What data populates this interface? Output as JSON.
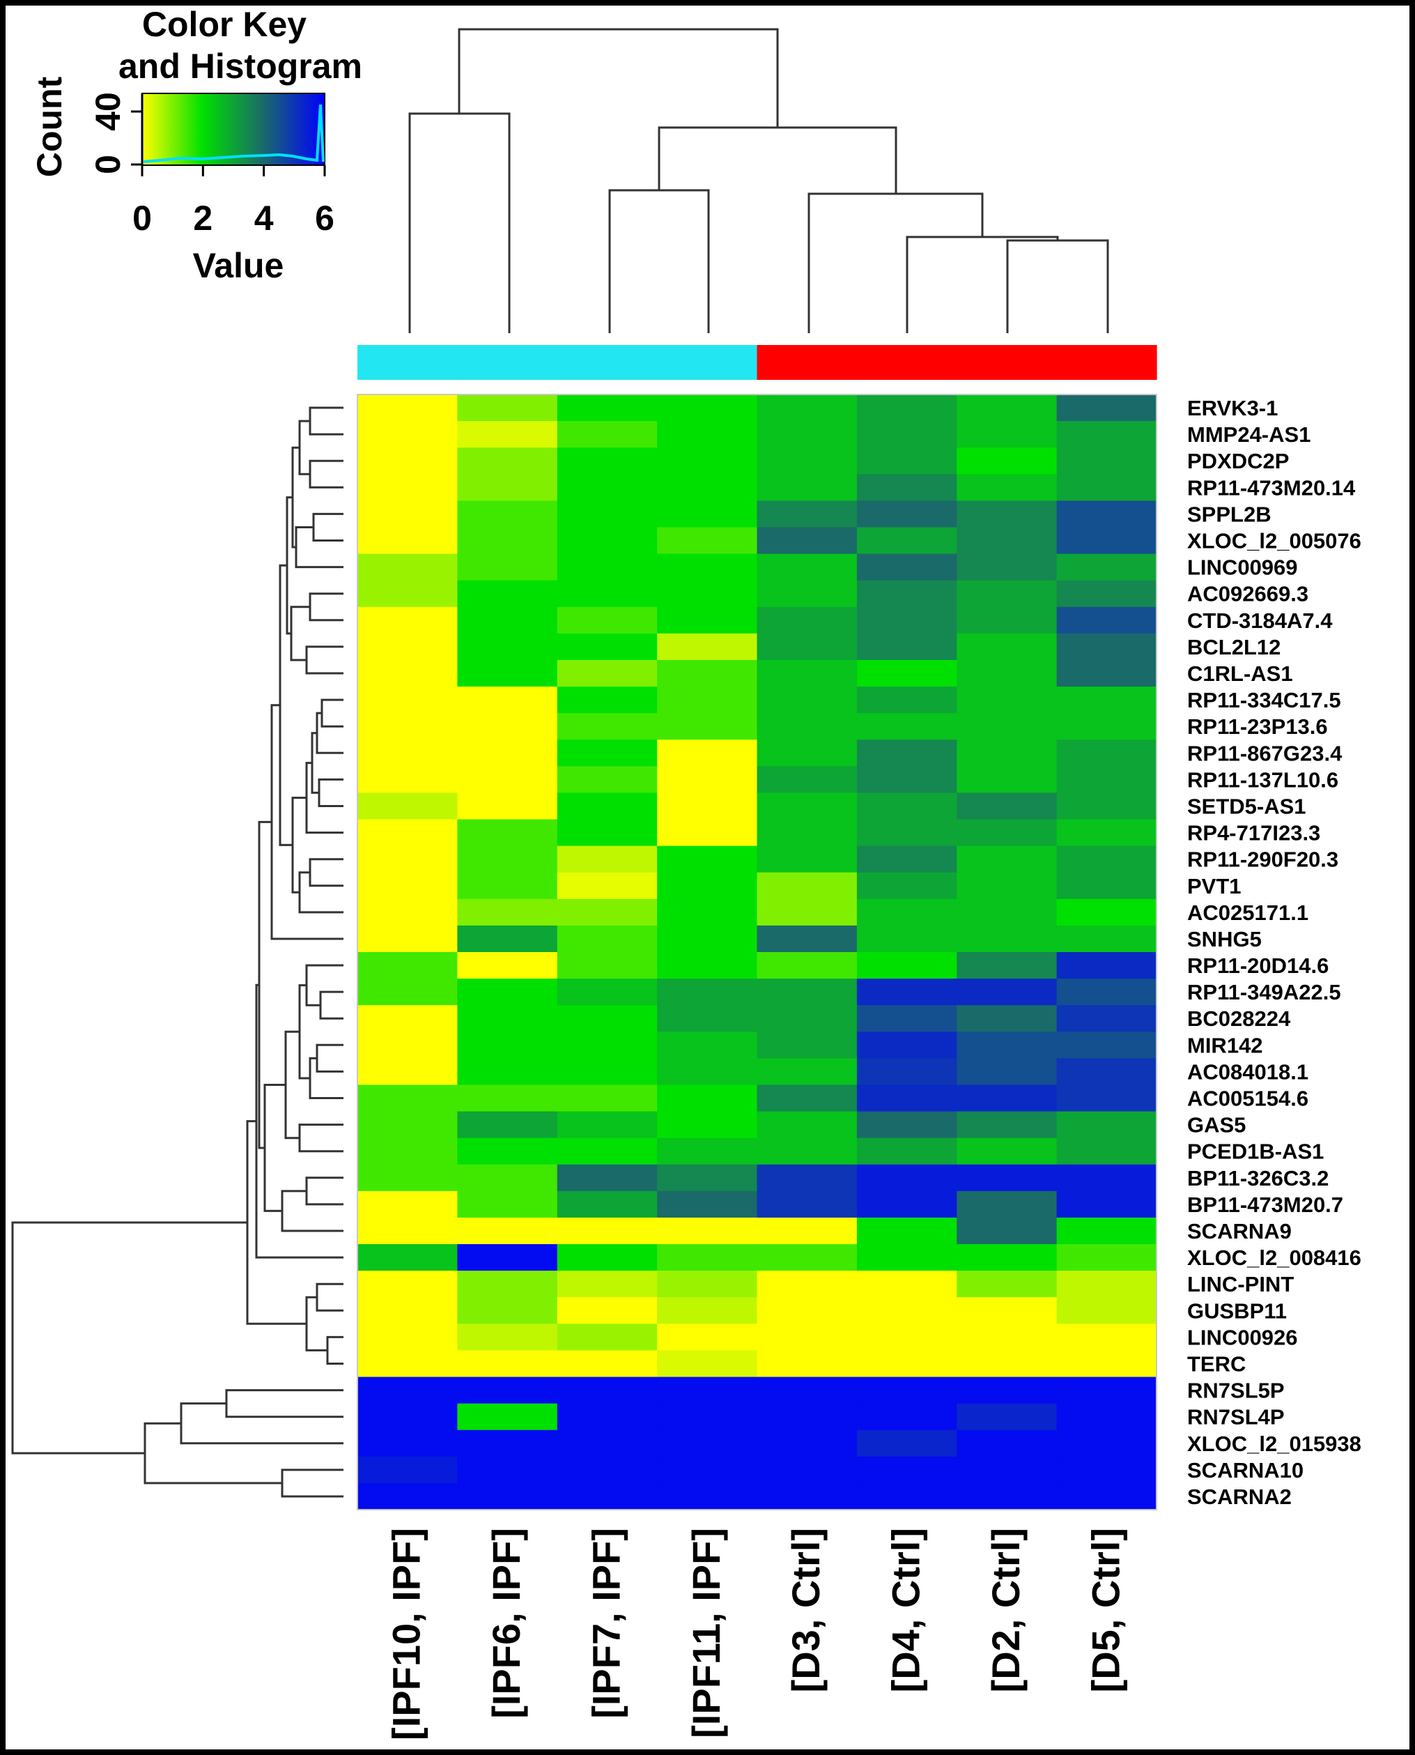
{
  "chart_data": {
    "type": "heatmap",
    "color_key": {
      "title_line1": "Color Key",
      "title_line2": "and Histogram",
      "ylabel": "Count",
      "xlabel": "Value",
      "x_ticks": [
        "0",
        "2",
        "4",
        "6"
      ],
      "y_ticks": [
        "0",
        "40"
      ],
      "range": [
        0,
        6
      ],
      "colors": [
        "#ffff00",
        "#00e000",
        "#1a6a6a",
        "#0000ff"
      ]
    },
    "columns": [
      "[IPF10, IPF]",
      "[IPF6, IPF]",
      "[IPF7, IPF]",
      "[IPF11, IPF]",
      "[D3, Ctrl]",
      "[D4, Ctrl]",
      "[D2, Ctrl]",
      "[D5, Ctrl]"
    ],
    "column_groups": [
      "IPF",
      "IPF",
      "IPF",
      "IPF",
      "Ctrl",
      "Ctrl",
      "Ctrl",
      "Ctrl"
    ],
    "group_colors": {
      "IPF": "#22e6f2",
      "Ctrl": "#ff0000"
    },
    "rows": [
      "ERVK3-1",
      "MMP24-AS1",
      "PDXDC2P",
      "RP11-473M20.14",
      "SPPL2B",
      "XLOC_l2_005076",
      "LINC00969",
      "AC092669.3",
      "CTD-3184A7.4",
      "BCL2L12",
      "C1RL-AS1",
      "RP11-334C17.5",
      "RP11-23P13.6",
      "RP11-867G23.4",
      "RP11-137L10.6",
      "SETD5-AS1",
      "RP4-717I23.3",
      "RP11-290F20.3",
      "PVT1",
      "AC025171.1",
      "SNHG5",
      "RP11-20D14.6",
      "RP11-349A22.5",
      "BC028224",
      "MIR142",
      "AC084018.1",
      "AC005154.6",
      "GAS5",
      "PCED1B-AS1",
      "BP11-326C3.2",
      "BP11-473M20.7",
      "SCARNA9",
      "XLOC_l2_008416",
      "LINC-PINT",
      "GUSBP11",
      "LINC00926",
      "TERC",
      "RN7SL5P",
      "RN7SL4P",
      "XLOC_l2_015938",
      "SCARNA10",
      "SCARNA2"
    ],
    "values": [
      [
        0.0,
        1.0,
        2.0,
        2.0,
        2.5,
        3.0,
        2.5,
        4.0
      ],
      [
        0.0,
        0.3,
        1.5,
        2.0,
        2.5,
        3.0,
        2.5,
        3.0
      ],
      [
        0.0,
        1.0,
        2.0,
        2.0,
        2.5,
        3.0,
        2.0,
        3.0
      ],
      [
        0.0,
        1.0,
        2.0,
        2.0,
        2.5,
        3.5,
        2.5,
        3.0
      ],
      [
        0.0,
        1.5,
        2.0,
        2.0,
        3.5,
        4.0,
        3.5,
        4.5
      ],
      [
        0.0,
        1.5,
        2.0,
        1.5,
        4.0,
        3.0,
        3.5,
        4.5
      ],
      [
        0.8,
        1.5,
        2.0,
        2.0,
        2.5,
        4.0,
        3.5,
        3.0
      ],
      [
        0.8,
        2.0,
        2.0,
        2.0,
        2.5,
        3.5,
        3.0,
        3.5
      ],
      [
        0.0,
        2.0,
        1.5,
        2.0,
        3.0,
        3.5,
        3.0,
        4.5
      ],
      [
        0.0,
        2.0,
        2.0,
        0.5,
        3.0,
        3.5,
        2.5,
        4.0
      ],
      [
        0.0,
        2.0,
        1.0,
        1.5,
        2.5,
        2.0,
        2.5,
        4.0
      ],
      [
        0.0,
        0.0,
        2.0,
        1.5,
        2.5,
        3.0,
        2.5,
        2.5
      ],
      [
        0.0,
        0.0,
        1.5,
        1.5,
        2.5,
        2.5,
        2.5,
        2.5
      ],
      [
        0.0,
        0.0,
        2.0,
        0.0,
        2.5,
        3.5,
        2.5,
        3.0
      ],
      [
        0.0,
        0.0,
        1.5,
        0.0,
        3.0,
        3.5,
        2.5,
        3.0
      ],
      [
        0.5,
        0.0,
        2.0,
        0.0,
        2.5,
        3.0,
        3.5,
        3.0
      ],
      [
        0.0,
        1.5,
        2.0,
        0.0,
        2.5,
        3.0,
        3.0,
        2.5
      ],
      [
        0.0,
        1.5,
        0.5,
        2.0,
        2.5,
        3.5,
        2.5,
        3.0
      ],
      [
        0.0,
        1.5,
        0.2,
        2.0,
        1.0,
        3.0,
        2.5,
        3.0
      ],
      [
        0.0,
        1.0,
        1.0,
        2.0,
        1.0,
        2.5,
        2.5,
        2.0
      ],
      [
        0.0,
        3.0,
        1.5,
        2.0,
        4.0,
        2.5,
        2.5,
        2.5
      ],
      [
        1.5,
        0.0,
        1.5,
        2.0,
        1.5,
        2.0,
        3.5,
        5.2
      ],
      [
        1.5,
        2.0,
        2.5,
        3.0,
        3.0,
        5.2,
        5.2,
        4.5
      ],
      [
        0.0,
        2.0,
        2.0,
        3.0,
        3.0,
        4.5,
        4.0,
        5.0
      ],
      [
        0.0,
        2.0,
        2.0,
        2.5,
        3.0,
        5.2,
        4.5,
        4.5
      ],
      [
        0.0,
        2.0,
        2.0,
        2.5,
        2.5,
        5.0,
        4.5,
        5.0
      ],
      [
        1.5,
        1.5,
        1.5,
        2.0,
        3.5,
        5.2,
        5.2,
        5.0
      ],
      [
        1.5,
        3.0,
        2.5,
        2.0,
        2.5,
        4.0,
        3.5,
        3.0
      ],
      [
        1.5,
        2.0,
        2.0,
        2.5,
        2.5,
        3.0,
        2.5,
        3.0
      ],
      [
        1.5,
        1.5,
        4.0,
        3.5,
        5.0,
        5.5,
        5.5,
        5.5
      ],
      [
        0.0,
        1.5,
        3.0,
        4.0,
        5.0,
        5.5,
        4.0,
        5.5
      ],
      [
        0.0,
        0.0,
        0.0,
        0.0,
        0.0,
        2.0,
        4.0,
        2.0
      ],
      [
        2.5,
        5.8,
        2.0,
        1.5,
        1.5,
        2.0,
        2.0,
        1.5
      ],
      [
        0.0,
        1.0,
        0.5,
        0.8,
        0.0,
        0.0,
        1.0,
        0.5
      ],
      [
        0.0,
        1.0,
        0.0,
        0.5,
        0.0,
        0.0,
        0.0,
        0.5
      ],
      [
        0.0,
        0.5,
        0.8,
        0.0,
        0.0,
        0.0,
        0.0,
        0.0
      ],
      [
        0.0,
        0.0,
        0.0,
        0.3,
        0.0,
        0.0,
        0.0,
        0.0
      ],
      [
        5.8,
        5.8,
        5.8,
        5.8,
        5.8,
        5.8,
        5.8,
        5.8
      ],
      [
        5.8,
        2.0,
        5.8,
        5.8,
        5.8,
        5.8,
        5.3,
        5.8
      ],
      [
        5.8,
        5.8,
        5.8,
        5.8,
        5.8,
        5.3,
        5.8,
        5.8
      ],
      [
        5.5,
        5.8,
        5.8,
        5.8,
        5.8,
        5.8,
        5.8,
        5.8
      ],
      [
        5.8,
        5.8,
        5.8,
        5.8,
        5.8,
        5.8,
        5.8,
        5.8
      ]
    ]
  }
}
